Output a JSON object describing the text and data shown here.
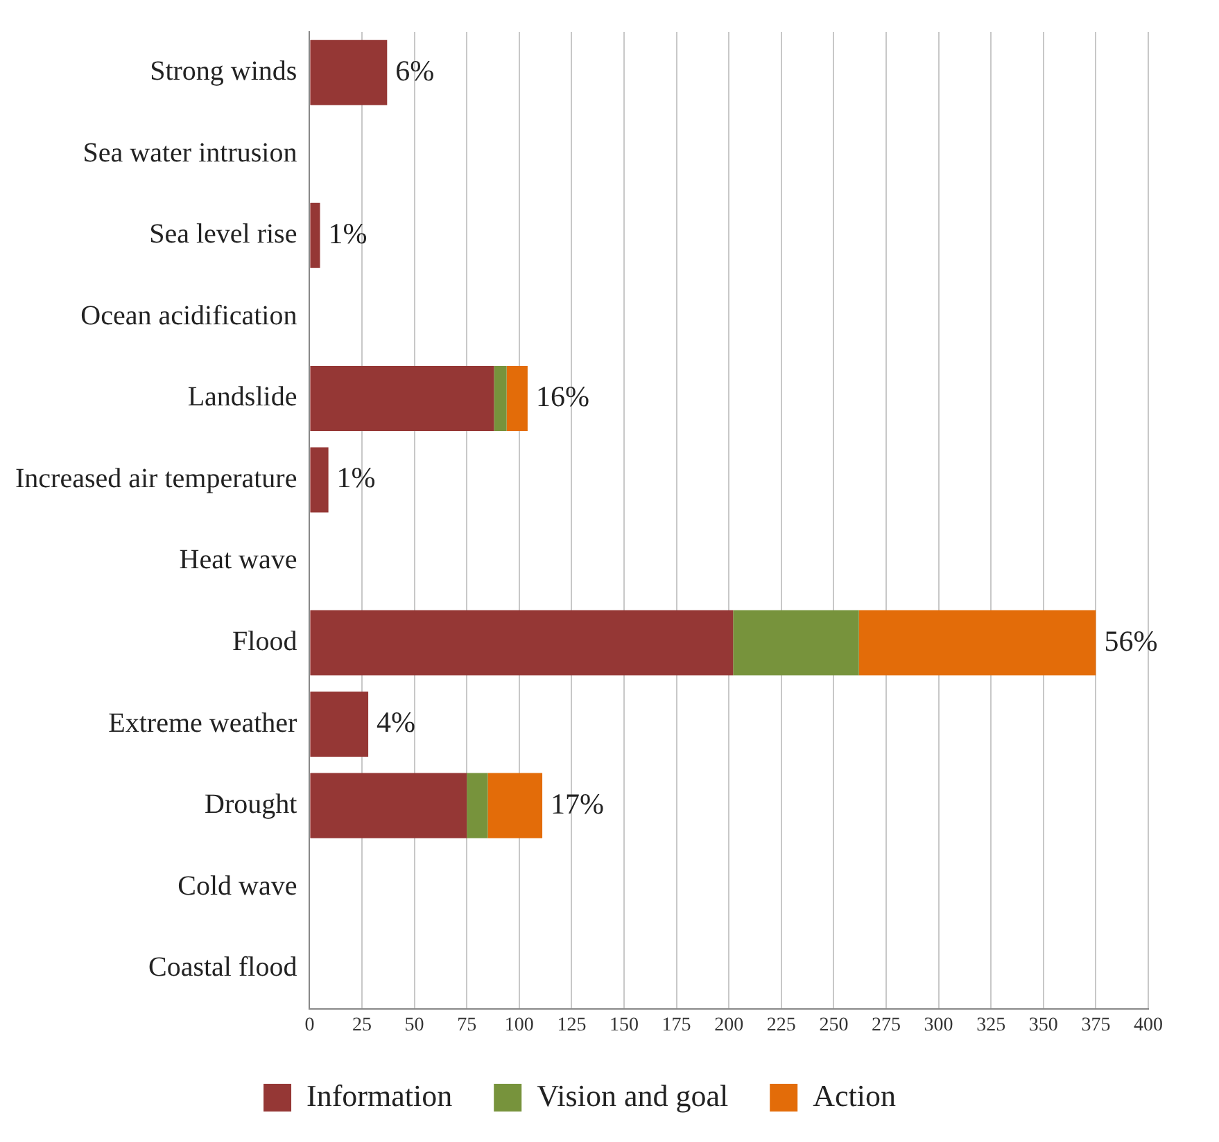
{
  "chart_data": {
    "type": "bar",
    "orientation": "horizontal",
    "stacked": true,
    "categories": [
      "Strong winds",
      "Sea water intrusion",
      "Sea level rise",
      "Ocean acidification",
      "Landslide",
      "Increased air temperature",
      "Heat wave",
      "Flood",
      "Extreme weather",
      "Drought",
      "Cold wave",
      "Coastal flood"
    ],
    "series": [
      {
        "name": "Information",
        "color": "#953735",
        "values": [
          37,
          0,
          5,
          0,
          88,
          9,
          0,
          202,
          28,
          75,
          0,
          0
        ]
      },
      {
        "name": "Vision and goal",
        "color": "#77933c",
        "values": [
          0,
          0,
          0,
          0,
          6,
          0,
          0,
          60,
          0,
          10,
          0,
          0
        ]
      },
      {
        "name": "Action",
        "color": "#e36c09",
        "values": [
          0,
          0,
          0,
          0,
          10,
          0,
          0,
          113,
          0,
          26,
          0,
          0
        ]
      }
    ],
    "annotations": [
      {
        "text": "6%",
        "x": 37,
        "y": "Strong winds"
      },
      {
        "text": "1%",
        "x": 5,
        "y": "Sea level rise"
      },
      {
        "text": "16%",
        "x": 104,
        "y": "Landslide"
      },
      {
        "text": "1%",
        "x": 9,
        "y": "Increased air temperature"
      },
      {
        "text": "56%",
        "x": 375,
        "y": "Flood"
      },
      {
        "text": "4%",
        "x": 28,
        "y": "Extreme weather"
      },
      {
        "text": "17%",
        "x": 111,
        "y": "Drought"
      }
    ],
    "xlim": [
      0,
      400
    ],
    "xticks": [
      0,
      25,
      50,
      75,
      100,
      125,
      150,
      175,
      200,
      225,
      250,
      275,
      300,
      325,
      350,
      375,
      400
    ],
    "grid": "x",
    "legend": "bottom"
  }
}
